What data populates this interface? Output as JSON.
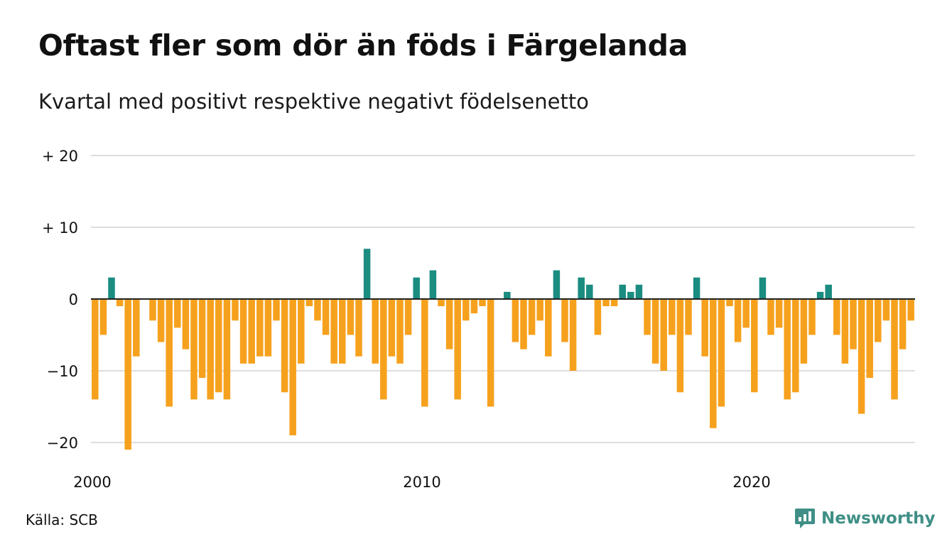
{
  "title": "Oftast fler som dör än föds i Färgelanda",
  "subtitle": "Kvartal med positivt respektive negativt födelsenetto",
  "source": "Källa: SCB",
  "brand": {
    "name": "Newsworthy",
    "icon": "newsworthy-logo-icon",
    "color": "#3f8f86"
  },
  "colors": {
    "positive": "#1a8c80",
    "negative": "#f6a11d",
    "grid": "#dddddd",
    "zero_line": "#222222"
  },
  "chart_data": {
    "type": "bar",
    "title": "Oftast fler som dör än föds i Färgelanda",
    "subtitle": "Kvartal med positivt respektive negativt födelsenetto",
    "xlabel": "",
    "ylabel": "",
    "ylim": [
      -22,
      20
    ],
    "yticks": [
      20,
      10,
      0,
      -10,
      -20
    ],
    "ytick_labels": [
      "+ 20",
      "+ 10",
      "0",
      "−10",
      "−20"
    ],
    "x_start": "2000",
    "x_ticks": [
      "2000",
      "2010",
      "2020"
    ],
    "grid": true,
    "legend": false,
    "values": [
      -14,
      -5,
      3,
      -1,
      -21,
      -8,
      0,
      -3,
      -6,
      -15,
      -4,
      -7,
      -14,
      -11,
      -14,
      -13,
      -14,
      -3,
      -9,
      -9,
      -8,
      -8,
      -3,
      -13,
      -19,
      -9,
      -1,
      -3,
      -5,
      -9,
      -9,
      -5,
      -8,
      7,
      -9,
      -14,
      -8,
      -9,
      -5,
      3,
      -15,
      4,
      -1,
      -7,
      -14,
      -3,
      -2,
      -1,
      -15,
      0,
      1,
      -6,
      -7,
      -5,
      -3,
      -8,
      4,
      -6,
      -10,
      3,
      2,
      -5,
      -1,
      -1,
      2,
      1,
      2,
      -5,
      -9,
      -10,
      -5,
      -13,
      -5,
      3,
      -8,
      -18,
      -15,
      -1,
      -6,
      -4,
      -13,
      3,
      -5,
      -4,
      -14,
      -13,
      -9,
      -5,
      1,
      2,
      -5,
      -9,
      -7,
      -16,
      -11,
      -6,
      -3,
      -14,
      -7,
      -3
    ]
  }
}
